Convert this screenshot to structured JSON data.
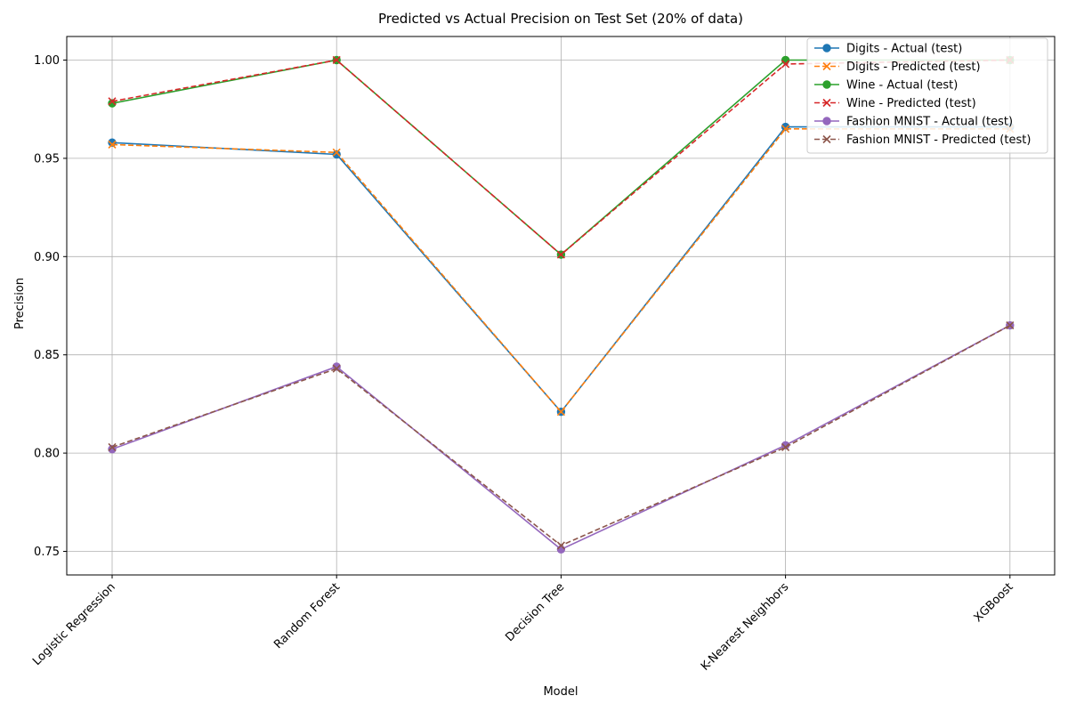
{
  "chart_data": {
    "type": "line",
    "title": "Predicted vs Actual Precision on Test Set (20% of data)",
    "xlabel": "Model",
    "ylabel": "Precision",
    "categories": [
      "Logistic Regression",
      "Random Forest",
      "Decision Tree",
      "K-Nearest Neighbors",
      "XGBoost"
    ],
    "ylim": [
      0.738,
      1.012
    ],
    "yticks": [
      0.75,
      0.8,
      0.85,
      0.9,
      0.95,
      1.0
    ],
    "ytick_labels": [
      "0.75",
      "0.80",
      "0.85",
      "0.90",
      "0.95",
      "1.00"
    ],
    "grid": true,
    "legend_position": "top-right",
    "series": [
      {
        "name": "Digits - Actual (test)",
        "color": "#1f77b4",
        "marker": "circle",
        "dash": "solid",
        "values": [
          0.958,
          0.952,
          0.821,
          0.966,
          0.966
        ]
      },
      {
        "name": "Digits - Predicted (test)",
        "color": "#ff7f0e",
        "marker": "x",
        "dash": "dashed",
        "values": [
          0.957,
          0.953,
          0.821,
          0.965,
          0.965
        ]
      },
      {
        "name": "Wine - Actual (test)",
        "color": "#2ca02c",
        "marker": "circle",
        "dash": "solid",
        "values": [
          0.978,
          1.0,
          0.901,
          1.0,
          1.0
        ]
      },
      {
        "name": "Wine - Predicted (test)",
        "color": "#d62728",
        "marker": "x",
        "dash": "dashed",
        "values": [
          0.979,
          1.0,
          0.901,
          0.998,
          1.0
        ]
      },
      {
        "name": "Fashion MNIST - Actual (test)",
        "color": "#9467bd",
        "marker": "circle",
        "dash": "solid",
        "values": [
          0.802,
          0.844,
          0.751,
          0.804,
          0.865
        ]
      },
      {
        "name": "Fashion MNIST - Predicted (test)",
        "color": "#8c564b",
        "marker": "x",
        "dash": "dashed",
        "values": [
          0.803,
          0.843,
          0.753,
          0.803,
          0.865
        ]
      }
    ]
  }
}
